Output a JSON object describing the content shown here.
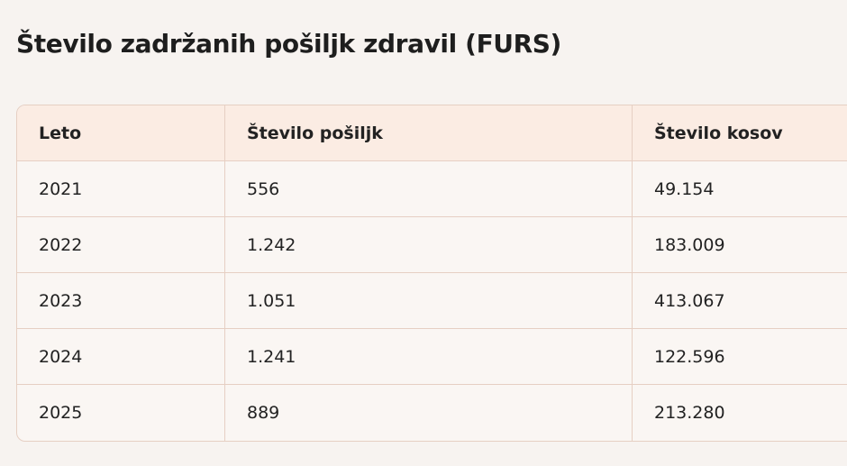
{
  "header": {
    "title": "Število zadržanih pošiljk zdravil (FURS)"
  },
  "table": {
    "columns": [
      "Leto",
      "Število pošiljk",
      "Število kosov"
    ],
    "rows": [
      [
        "2021",
        "556",
        "49.154"
      ],
      [
        "2022",
        "1.242",
        "183.009"
      ],
      [
        "2023",
        "1.051",
        "413.067"
      ],
      [
        "2024",
        "1.241",
        "122.596"
      ],
      [
        "2025",
        "889",
        "213.280"
      ]
    ]
  }
}
